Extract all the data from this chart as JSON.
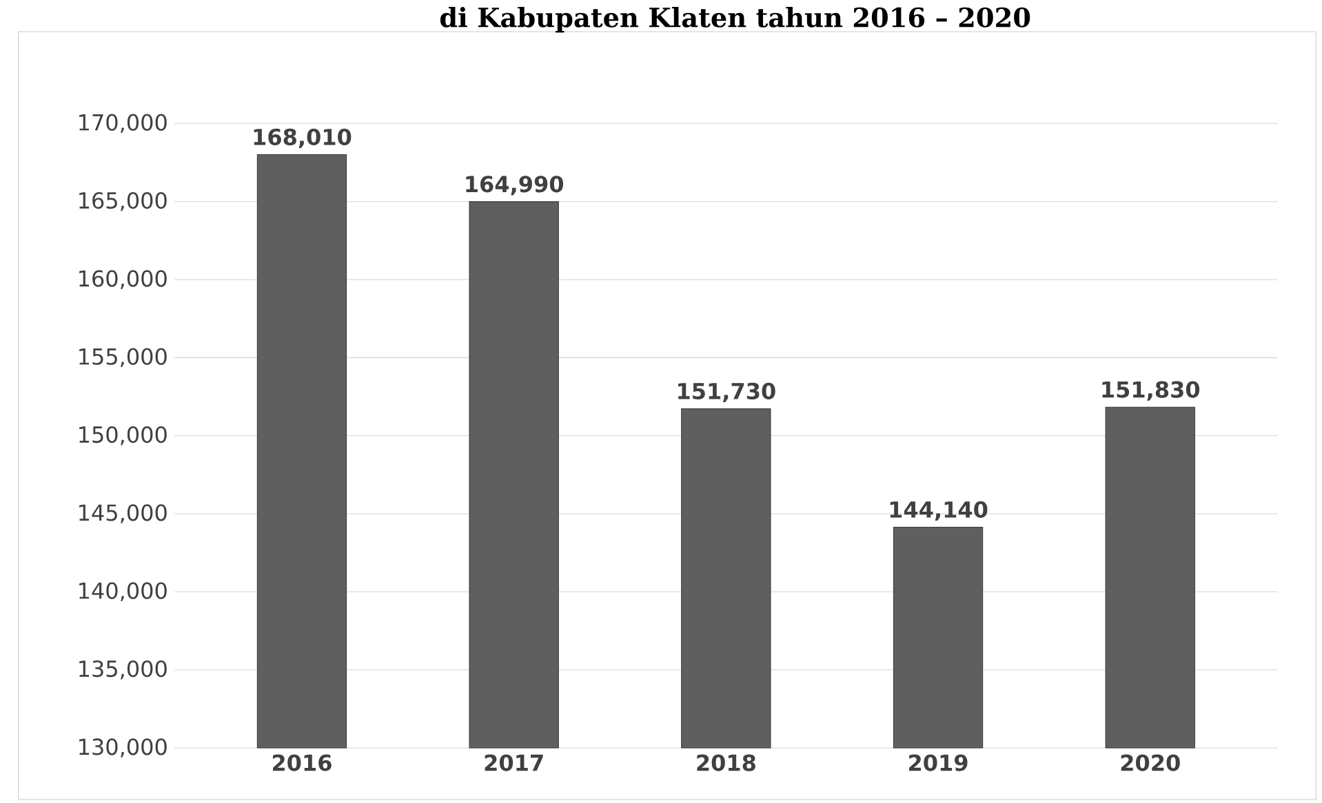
{
  "chart_data": {
    "type": "bar",
    "title": "di Kabupaten Klaten tahun 2016 – 2020",
    "categories": [
      "2016",
      "2017",
      "2018",
      "2019",
      "2020"
    ],
    "values": [
      168010,
      164990,
      151730,
      144140,
      151830
    ],
    "value_labels": [
      "168,010",
      "164,990",
      "151,730",
      "144,140",
      "151,830"
    ],
    "color": "#5f5f5f",
    "ylim": [
      130000,
      170000
    ],
    "yticks": [
      {
        "value": 130000,
        "label": "130,000"
      },
      {
        "value": 135000,
        "label": "135,000"
      },
      {
        "value": 140000,
        "label": "140,000"
      },
      {
        "value": 145000,
        "label": "145,000"
      },
      {
        "value": 150000,
        "label": "150,000"
      },
      {
        "value": 155000,
        "label": "155,000"
      },
      {
        "value": 160000,
        "label": "160,000"
      },
      {
        "value": 165000,
        "label": "165,000"
      },
      {
        "value": 170000,
        "label": "170,000"
      }
    ],
    "grid": "y"
  }
}
